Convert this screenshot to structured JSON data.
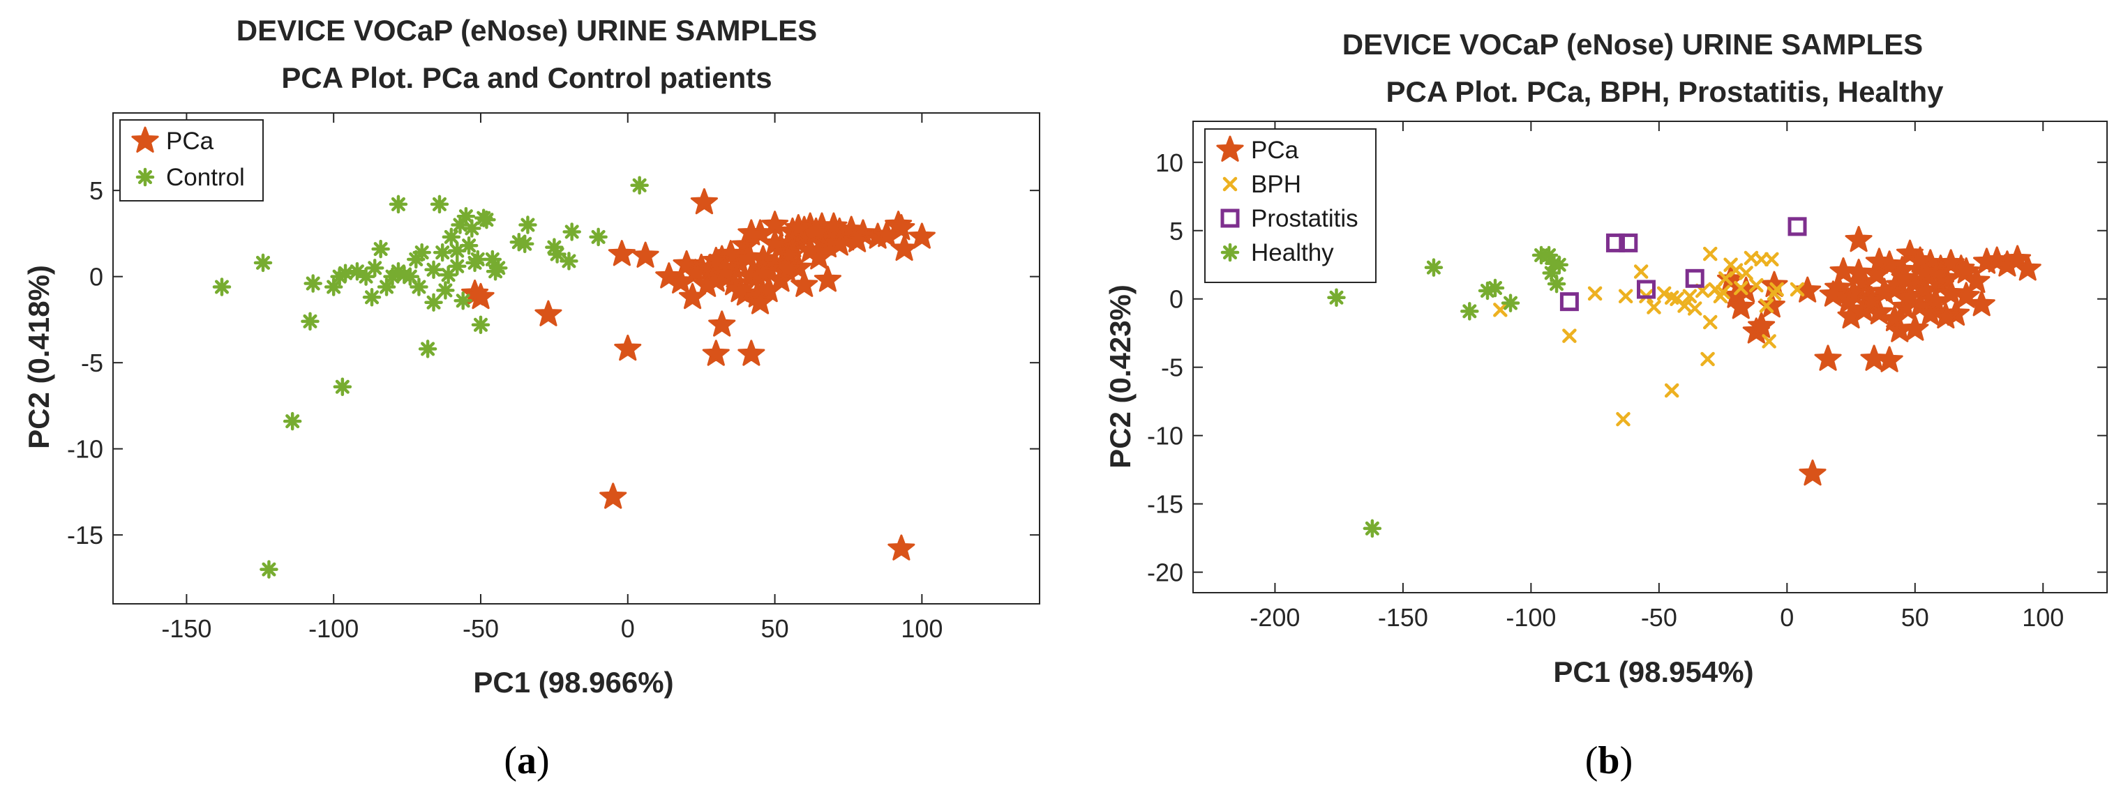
{
  "colors": {
    "pca": "#D95319",
    "control": "#77AC30",
    "bph": "#EDB120",
    "prostatitis": "#7E2F8E",
    "axis": "#262626"
  },
  "chart_data": [
    {
      "type": "scatter",
      "title": [
        "DEVICE VOCaP (eNose) URINE SAMPLES",
        "PCA Plot. PCa and Control patients"
      ],
      "xlabel": "PC1 (98.966%)",
      "ylabel": "PC2 (0.418%)",
      "xlim": [
        -175,
        140
      ],
      "ylim": [
        -19,
        9.5
      ],
      "xticks": [
        -150,
        -100,
        -50,
        0,
        50,
        100
      ],
      "yticks": [
        -15,
        -10,
        -5,
        0,
        5
      ],
      "caption_letter": "a",
      "legend_loc": "top-left",
      "series": [
        {
          "name": "PCa",
          "marker": "star",
          "color": "#D95319",
          "points": [
            [
              -52,
              -1
            ],
            [
              -50,
              -1.2
            ],
            [
              -27,
              -2.2
            ],
            [
              0,
              -4.2
            ],
            [
              -5,
              -12.8
            ],
            [
              93,
              -15.8
            ],
            [
              30,
              -4.5
            ],
            [
              42,
              -4.5
            ],
            [
              32,
              -2.8
            ],
            [
              -2,
              1.3
            ],
            [
              6,
              1.2
            ],
            [
              14,
              0
            ],
            [
              18,
              -0.3
            ],
            [
              22,
              -1.2
            ],
            [
              25,
              0.5
            ],
            [
              28,
              0.5
            ],
            [
              30,
              -0.2
            ],
            [
              32,
              1
            ],
            [
              34,
              0
            ],
            [
              36,
              0.5
            ],
            [
              38,
              0.8
            ],
            [
              40,
              -1
            ],
            [
              42,
              0
            ],
            [
              44,
              -1.1
            ],
            [
              46,
              1
            ],
            [
              48,
              0.4
            ],
            [
              50,
              0.7
            ],
            [
              52,
              1.7
            ],
            [
              54,
              1.5
            ],
            [
              56,
              1.8
            ],
            [
              58,
              2.1
            ],
            [
              60,
              2.3
            ],
            [
              62,
              1.5
            ],
            [
              64,
              2.5
            ],
            [
              66,
              2
            ],
            [
              68,
              1.8
            ],
            [
              70,
              2.4
            ],
            [
              72,
              2.6
            ],
            [
              74,
              2.2
            ],
            [
              76,
              2.7
            ],
            [
              80,
              2.5
            ],
            [
              85,
              2.3
            ],
            [
              92,
              3
            ],
            [
              93,
              2.8
            ],
            [
              100,
              2.3
            ],
            [
              26,
              4.3
            ],
            [
              44,
              0
            ],
            [
              40,
              1.8
            ],
            [
              35,
              1.3
            ],
            [
              45,
              2.5
            ],
            [
              50,
              3
            ],
            [
              55,
              1.2
            ],
            [
              58,
              0.5
            ],
            [
              48,
              -0.8
            ],
            [
              52,
              -0.2
            ],
            [
              36,
              -0.4
            ],
            [
              30,
              0.9
            ],
            [
              20,
              0.7
            ],
            [
              38,
              -0.8
            ],
            [
              62,
              2.9
            ],
            [
              66,
              2.9
            ],
            [
              70,
              2.9
            ],
            [
              78,
              2.1
            ],
            [
              88,
              2.4
            ],
            [
              94,
              1.6
            ],
            [
              68,
              -0.2
            ],
            [
              42,
              2.5
            ],
            [
              46,
              0.2
            ],
            [
              56,
              2.6
            ],
            [
              60,
              2.7
            ],
            [
              33,
              0.2
            ],
            [
              27,
              -0.5
            ],
            [
              23,
              0.2
            ],
            [
              41,
              1.1
            ],
            [
              64,
              2.6
            ],
            [
              54,
              0.4
            ],
            [
              50,
              1.9
            ],
            [
              72,
              1.9
            ],
            [
              60,
              -0.5
            ],
            [
              45,
              -1.5
            ],
            [
              65,
              1.1
            ],
            [
              58,
              2.8
            ]
          ]
        },
        {
          "name": "Control",
          "marker": "asterisk",
          "color": "#77AC30",
          "points": [
            [
              -138,
              -0.6
            ],
            [
              -124,
              0.8
            ],
            [
              -122,
              -17
            ],
            [
              -114,
              -8.4
            ],
            [
              -107,
              -0.4
            ],
            [
              -108,
              -2.6
            ],
            [
              -97,
              -6.4
            ],
            [
              -96,
              0.2
            ],
            [
              -98,
              0
            ],
            [
              -92,
              0.3
            ],
            [
              -86,
              0.5
            ],
            [
              -87,
              -1.2
            ],
            [
              -82,
              -0.6
            ],
            [
              -80,
              0
            ],
            [
              -78,
              4.2
            ],
            [
              -78,
              0.3
            ],
            [
              -76,
              0.1
            ],
            [
              -74,
              0
            ],
            [
              -72,
              1
            ],
            [
              -71,
              -0.6
            ],
            [
              -70,
              1.4
            ],
            [
              -68,
              -4.2
            ],
            [
              -66,
              -1.5
            ],
            [
              -64,
              4.2
            ],
            [
              -63,
              1.4
            ],
            [
              -61,
              0.1
            ],
            [
              -60,
              2.3
            ],
            [
              -58,
              1.5
            ],
            [
              -57,
              3
            ],
            [
              -56,
              -1.4
            ],
            [
              -55,
              3.5
            ],
            [
              -53,
              2.8
            ],
            [
              -52,
              0.8
            ],
            [
              -51,
              1
            ],
            [
              -50,
              -2.8
            ],
            [
              -49,
              3.4
            ],
            [
              -48,
              3.3
            ],
            [
              -46,
              1
            ],
            [
              -45,
              0.3
            ],
            [
              -44,
              0.5
            ],
            [
              -37,
              2
            ],
            [
              -35,
              1.9
            ],
            [
              -34,
              3
            ],
            [
              -25,
              1.7
            ],
            [
              -24,
              1.3
            ],
            [
              -19,
              2.6
            ],
            [
              -20,
              0.9
            ],
            [
              -10,
              2.3
            ],
            [
              4,
              5.3
            ],
            [
              -58,
              0.6
            ],
            [
              -62,
              -0.8
            ],
            [
              -100,
              -0.6
            ],
            [
              -89,
              0
            ],
            [
              -84,
              1.6
            ],
            [
              -66,
              0.4
            ],
            [
              -54,
              1.8
            ]
          ]
        }
      ]
    },
    {
      "type": "scatter",
      "title": [
        "DEVICE VOCaP (eNose) URINE SAMPLES",
        "PCA Plot. PCa, BPH, Prostatitis, Healthy"
      ],
      "xlabel": "PC1 (98.954%)",
      "ylabel": "PC2 (0.423%)",
      "xlim": [
        -232,
        125
      ],
      "ylim": [
        -21.5,
        13
      ],
      "xticks": [
        -200,
        -150,
        -100,
        -50,
        0,
        50,
        100
      ],
      "yticks": [
        -20,
        -15,
        -10,
        -5,
        0,
        5,
        10
      ],
      "caption_letter": "b",
      "legend_loc": "top-left",
      "series": [
        {
          "name": "PCa",
          "marker": "star",
          "color": "#D95319",
          "points": [
            [
              -22,
              1.4
            ],
            [
              -20,
              0.2
            ],
            [
              -18,
              -0.6
            ],
            [
              -16,
              0.6
            ],
            [
              -12,
              -2.4
            ],
            [
              -10,
              -2
            ],
            [
              -6,
              -0.5
            ],
            [
              -5,
              1
            ],
            [
              8,
              0.6
            ],
            [
              10,
              -12.8
            ],
            [
              16,
              -4.4
            ],
            [
              20,
              0.8
            ],
            [
              22,
              2
            ],
            [
              25,
              -1.3
            ],
            [
              28,
              4.3
            ],
            [
              30,
              1.2
            ],
            [
              32,
              0.1
            ],
            [
              34,
              -4.4
            ],
            [
              36,
              -1
            ],
            [
              38,
              0.5
            ],
            [
              40,
              -4.5
            ],
            [
              42,
              0.7
            ],
            [
              44,
              -2.3
            ],
            [
              45,
              2.1
            ],
            [
              46,
              -0.6
            ],
            [
              48,
              3.3
            ],
            [
              50,
              1.2
            ],
            [
              52,
              -0.5
            ],
            [
              54,
              0.6
            ],
            [
              56,
              2.6
            ],
            [
              58,
              -0.2
            ],
            [
              60,
              1
            ],
            [
              62,
              1.5
            ],
            [
              64,
              0.4
            ],
            [
              66,
              -1.1
            ],
            [
              68,
              2.2
            ],
            [
              70,
              2
            ],
            [
              74,
              1.3
            ],
            [
              76,
              -0.4
            ],
            [
              78,
              2.7
            ],
            [
              82,
              2.8
            ],
            [
              86,
              2.5
            ],
            [
              90,
              2.9
            ],
            [
              94,
              2.2
            ],
            [
              35,
              1.8
            ],
            [
              40,
              2.5
            ],
            [
              44,
              1
            ],
            [
              48,
              0.2
            ],
            [
              52,
              2.8
            ],
            [
              56,
              -1.1
            ],
            [
              60,
              2.2
            ],
            [
              64,
              2.6
            ],
            [
              30,
              -0.8
            ],
            [
              26,
              0.4
            ],
            [
              36,
              2.7
            ],
            [
              42,
              -1.5
            ],
            [
              50,
              -2.2
            ],
            [
              24,
              -0.2
            ],
            [
              18,
              0.3
            ],
            [
              58,
              1.9
            ],
            [
              62,
              -1.3
            ],
            [
              70,
              0.2
            ],
            [
              33,
              -0.1
            ],
            [
              46,
              1.5
            ],
            [
              54,
              1.9
            ],
            [
              28,
              1.9
            ]
          ]
        },
        {
          "name": "BPH",
          "marker": "x",
          "color": "#EDB120",
          "points": [
            [
              -112,
              -0.8
            ],
            [
              -85,
              -2.7
            ],
            [
              -75,
              0.4
            ],
            [
              -64,
              -8.8
            ],
            [
              -63,
              0.2
            ],
            [
              -57,
              2
            ],
            [
              -55,
              0.2
            ],
            [
              -52,
              -0.6
            ],
            [
              -48,
              0.4
            ],
            [
              -45,
              -6.7
            ],
            [
              -43,
              0
            ],
            [
              -40,
              -0.5
            ],
            [
              -38,
              0.2
            ],
            [
              -33,
              0.6
            ],
            [
              -31,
              -4.4
            ],
            [
              -30,
              -1.7
            ],
            [
              -30,
              3.3
            ],
            [
              -28,
              0.7
            ],
            [
              -25,
              0.5
            ],
            [
              -24,
              1.5
            ],
            [
              -22,
              2.5
            ],
            [
              -20,
              2.1
            ],
            [
              -18,
              0.8
            ],
            [
              -14,
              3
            ],
            [
              -12,
              1
            ],
            [
              -10,
              2.9
            ],
            [
              -8,
              -0.5
            ],
            [
              -7,
              -3.1
            ],
            [
              -6,
              2.9
            ],
            [
              -5,
              0.4
            ],
            [
              -4,
              0.7
            ],
            [
              4,
              0.7
            ],
            [
              -45,
              0.1
            ],
            [
              -36,
              -0.7
            ],
            [
              -26,
              0.2
            ],
            [
              -16,
              1.9
            ]
          ]
        },
        {
          "name": "Prostatitis",
          "marker": "square",
          "color": "#7E2F8E",
          "points": [
            [
              -85,
              -0.2
            ],
            [
              -67,
              4.1
            ],
            [
              -62,
              4.1
            ],
            [
              -55,
              0.7
            ],
            [
              -36,
              1.5
            ],
            [
              4,
              5.3
            ]
          ]
        },
        {
          "name": "Healthy",
          "marker": "asterisk",
          "color": "#77AC30",
          "points": [
            [
              -176,
              0.1
            ],
            [
              -162,
              -16.8
            ],
            [
              -138,
              2.3
            ],
            [
              -124,
              -0.9
            ],
            [
              -117,
              0.6
            ],
            [
              -114,
              0.8
            ],
            [
              -108,
              -0.3
            ],
            [
              -96,
              3.2
            ],
            [
              -93,
              3.2
            ],
            [
              -92,
              1.9
            ],
            [
              -91,
              2.6
            ],
            [
              -90,
              1.1
            ],
            [
              -89,
              2.5
            ]
          ]
        }
      ]
    }
  ]
}
